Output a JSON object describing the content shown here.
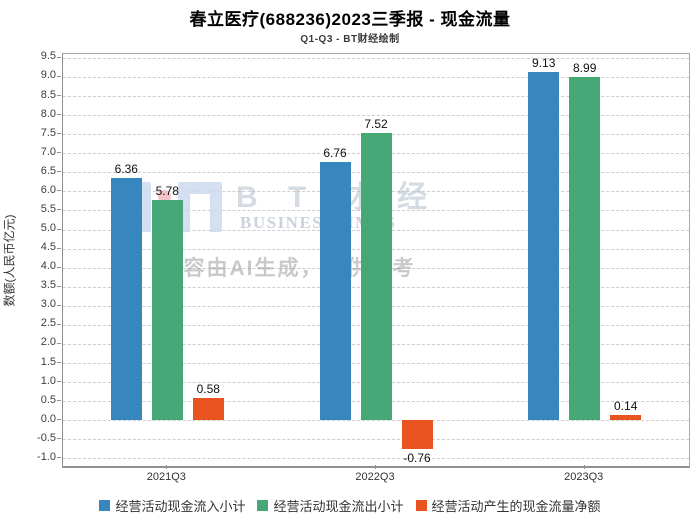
{
  "title": "春立医疗(688236)2023三季报 - 现金流量",
  "subtitle": "Q1-Q3 - BT财经绘制",
  "watermark": {
    "brand_cn": "B T 财 经",
    "brand_en": "BUSINESSTIMES",
    "disclaimer": "内容由AI生成，仅供参考"
  },
  "chart_data": {
    "type": "bar",
    "title": "春立医疗(688236)2023三季报 - 现金流量",
    "subtitle": "Q1-Q3 - BT财经绘制",
    "xlabel": "",
    "ylabel": "数额(人民币亿元)",
    "categories": [
      "2021Q3",
      "2022Q3",
      "2023Q3"
    ],
    "series": [
      {
        "name": "经营活动现金流入小计",
        "color": "#3786bd",
        "values": [
          6.36,
          6.76,
          9.13
        ]
      },
      {
        "name": "经营活动现金流出小计",
        "color": "#47a877",
        "values": [
          5.78,
          7.52,
          8.99
        ]
      },
      {
        "name": "经营活动产生的现金流量净额",
        "color": "#e9531f",
        "values": [
          0.58,
          -0.76,
          0.14
        ]
      }
    ],
    "ylim": [
      -1.2,
      9.6
    ],
    "ytick_step": 0.5,
    "ytick_min": -1.0,
    "ytick_max": 9.5,
    "grid": true,
    "gridline_style": "dashed",
    "legend_position": "bottom"
  }
}
